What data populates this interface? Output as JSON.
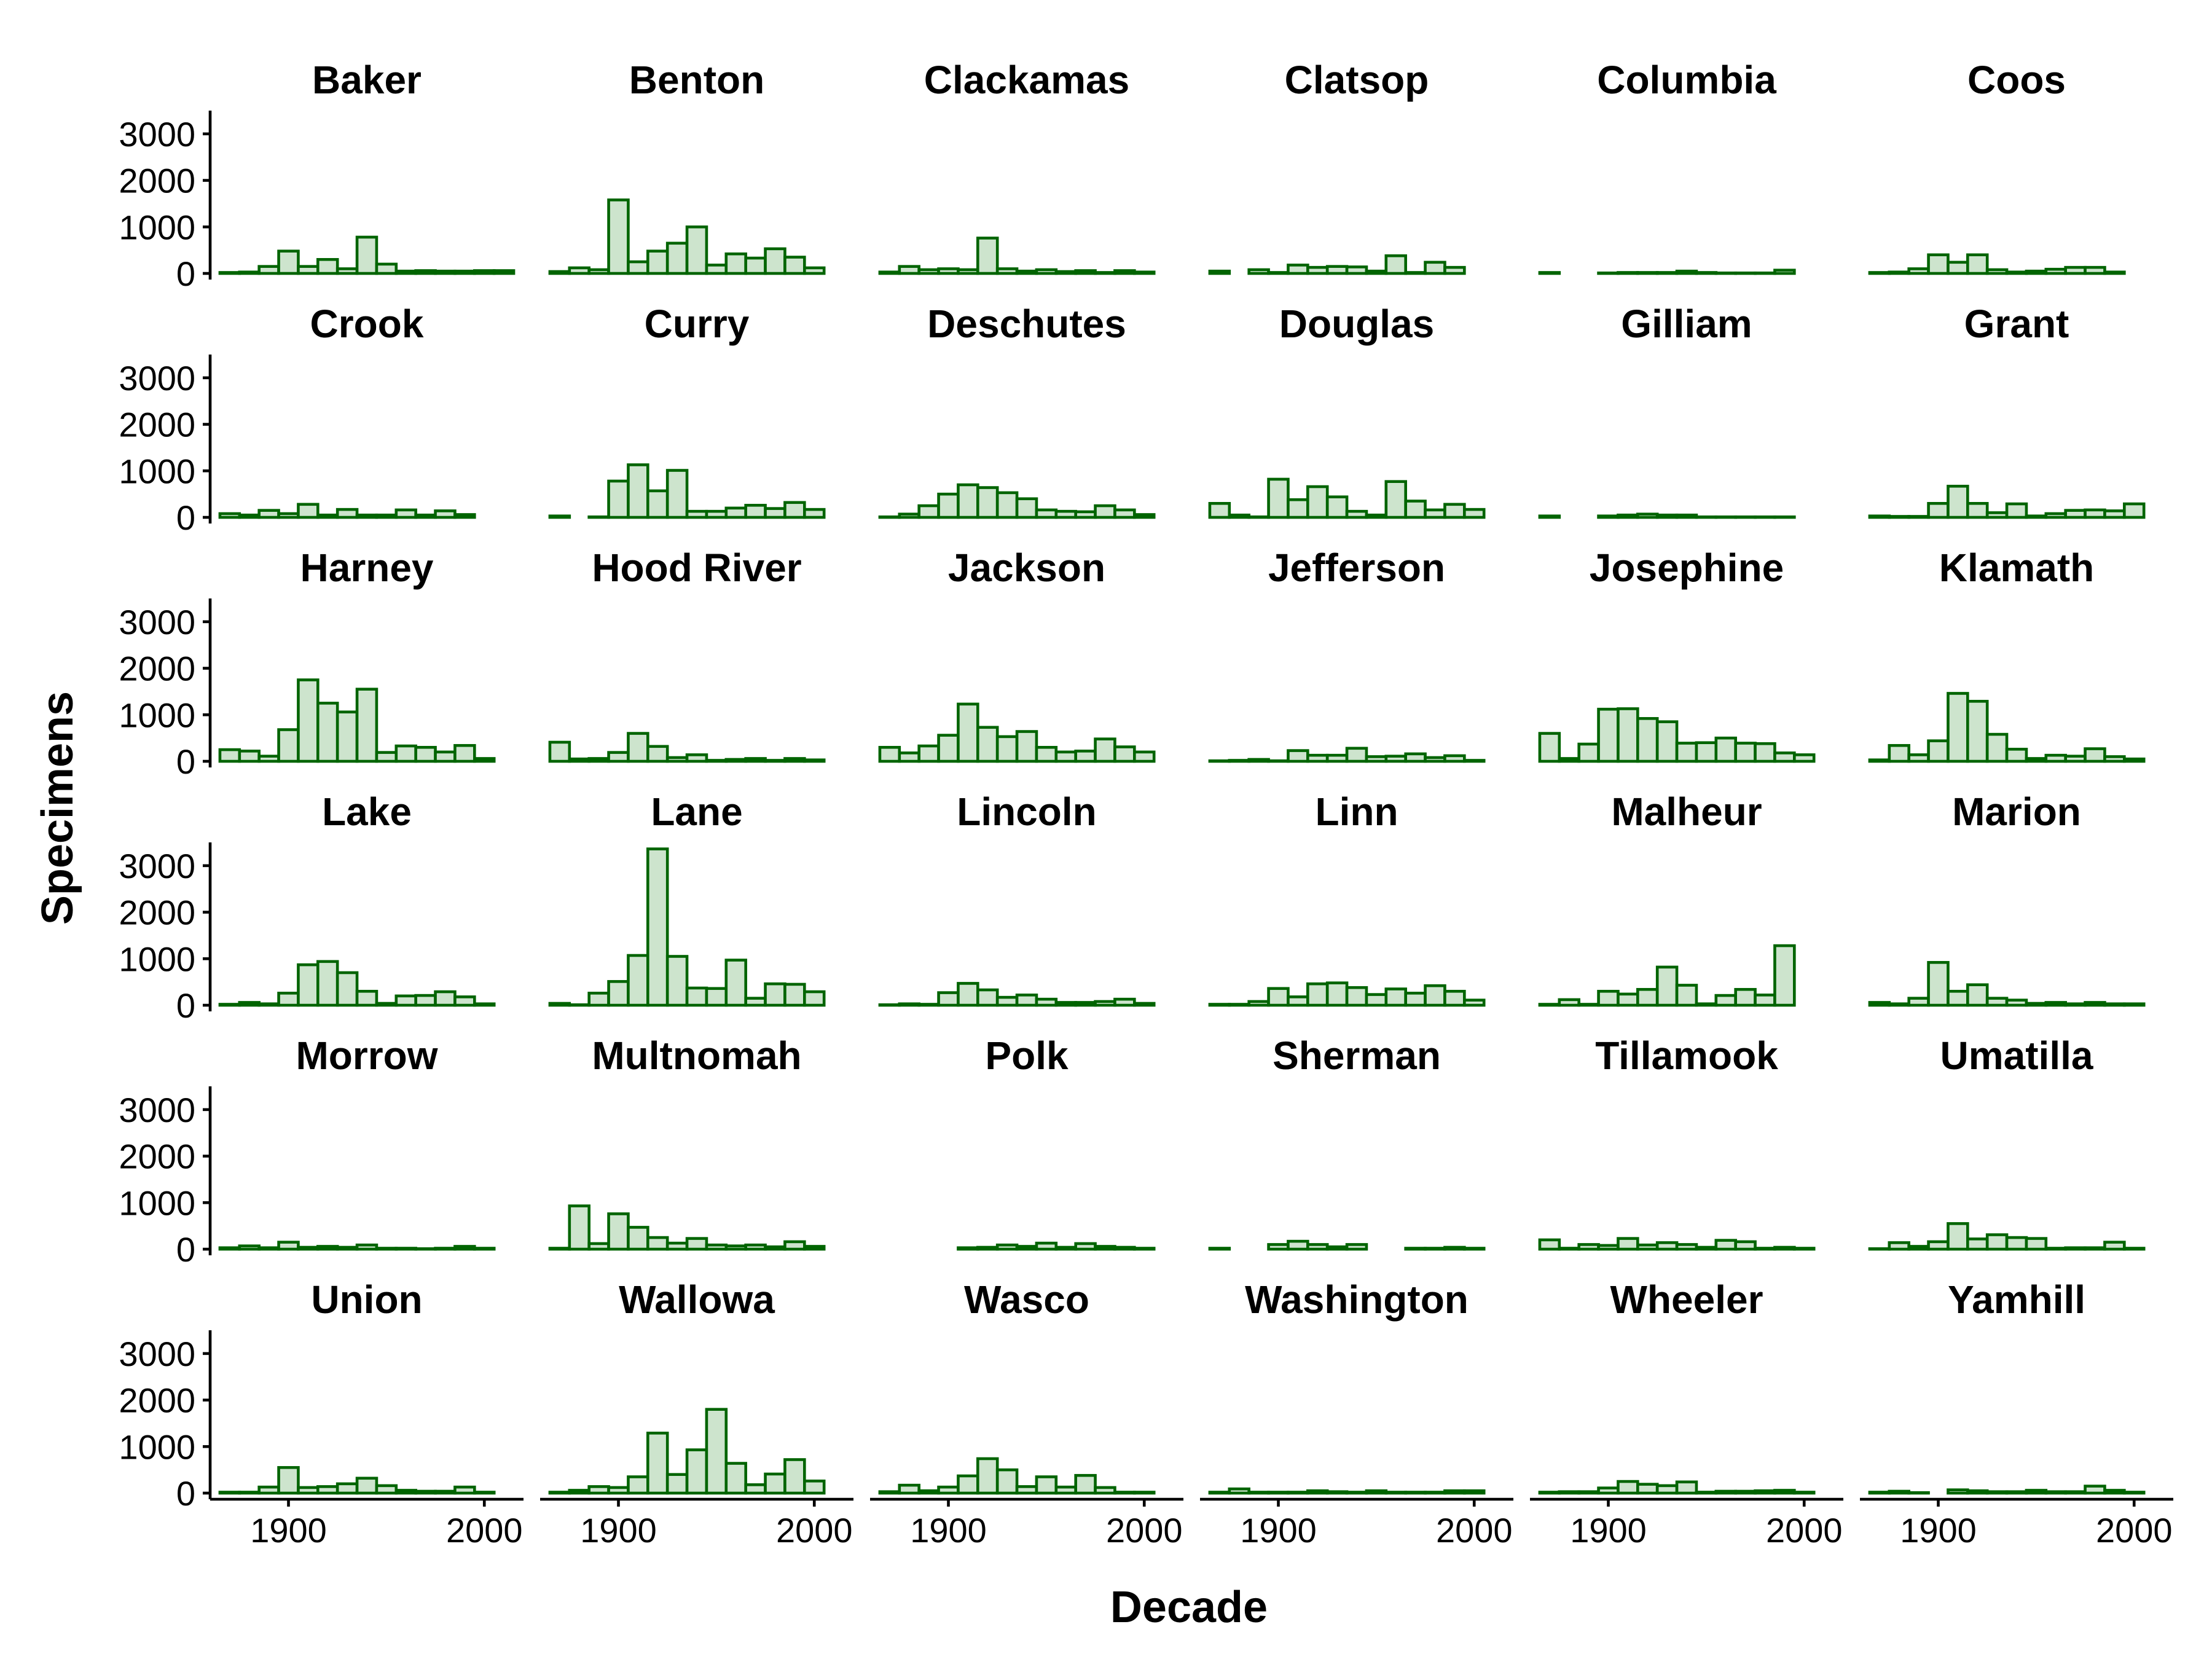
{
  "chart_data": {
    "type": "bar",
    "facet_layout": "6 columns x 6 rows, shared axes",
    "xlabel": "Decade",
    "ylabel": "Specimens",
    "x_ticks": [
      1900,
      2000
    ],
    "y_ticks": [
      0,
      1000,
      2000,
      3000
    ],
    "xlim": [
      1860,
      2020
    ],
    "ylim": [
      0,
      3500
    ],
    "bin_width": 10,
    "decades": [
      1870,
      1880,
      1890,
      1900,
      1910,
      1920,
      1930,
      1940,
      1950,
      1960,
      1970,
      1980,
      1990,
      2000,
      2010
    ],
    "bar_fill": "#cde4cd",
    "bar_stroke": "#006400",
    "grid": false,
    "legend": "none",
    "panels": [
      {
        "name": "Baker",
        "values": [
          20,
          30,
          150,
          480,
          150,
          300,
          100,
          780,
          200,
          50,
          60,
          50,
          50,
          60,
          60
        ]
      },
      {
        "name": "Benton",
        "values": [
          40,
          120,
          80,
          1580,
          250,
          480,
          650,
          1000,
          180,
          420,
          330,
          530,
          350,
          120,
          0
        ]
      },
      {
        "name": "Clackamas",
        "values": [
          30,
          150,
          80,
          100,
          80,
          760,
          100,
          50,
          80,
          40,
          60,
          20,
          60,
          30,
          0
        ]
      },
      {
        "name": "Clatsop",
        "values": [
          50,
          0,
          80,
          20,
          180,
          130,
          150,
          140,
          50,
          380,
          20,
          240,
          130,
          0,
          0
        ]
      },
      {
        "name": "Columbia",
        "values": [
          20,
          0,
          0,
          10,
          20,
          20,
          20,
          50,
          20,
          10,
          10,
          10,
          70,
          0,
          0
        ]
      },
      {
        "name": "Coos",
        "values": [
          20,
          30,
          100,
          400,
          240,
          400,
          80,
          30,
          50,
          90,
          130,
          130,
          30,
          0,
          0
        ]
      },
      {
        "name": "Crook",
        "values": [
          80,
          50,
          150,
          80,
          280,
          50,
          170,
          50,
          50,
          160,
          50,
          140,
          60,
          0,
          0
        ]
      },
      {
        "name": "Curry",
        "values": [
          30,
          0,
          10,
          780,
          1130,
          570,
          1010,
          130,
          130,
          200,
          260,
          190,
          320,
          170,
          0
        ]
      },
      {
        "name": "Deschutes",
        "values": [
          10,
          70,
          250,
          500,
          700,
          640,
          530,
          400,
          160,
          130,
          120,
          250,
          160,
          60,
          0
        ]
      },
      {
        "name": "Douglas",
        "values": [
          300,
          50,
          10,
          820,
          380,
          660,
          440,
          130,
          50,
          770,
          350,
          160,
          280,
          170,
          0
        ]
      },
      {
        "name": "Gilliam",
        "values": [
          30,
          0,
          0,
          30,
          50,
          70,
          50,
          50,
          10,
          10,
          10,
          10,
          10,
          0,
          0
        ]
      },
      {
        "name": "Grant",
        "values": [
          30,
          20,
          20,
          300,
          670,
          300,
          100,
          290,
          30,
          80,
          150,
          160,
          140,
          290,
          0
        ]
      },
      {
        "name": "Harney",
        "values": [
          250,
          220,
          110,
          680,
          1750,
          1250,
          1060,
          1550,
          190,
          330,
          300,
          200,
          340,
          60,
          0
        ]
      },
      {
        "name": "Hood River",
        "values": [
          410,
          50,
          60,
          190,
          600,
          320,
          80,
          140,
          20,
          40,
          60,
          20,
          60,
          30,
          0
        ]
      },
      {
        "name": "Jackson",
        "values": [
          300,
          180,
          330,
          560,
          1230,
          730,
          530,
          640,
          300,
          200,
          220,
          480,
          310,
          200,
          0
        ]
      },
      {
        "name": "Jefferson",
        "values": [
          10,
          20,
          40,
          10,
          230,
          130,
          130,
          280,
          100,
          110,
          160,
          80,
          120,
          20,
          0
        ]
      },
      {
        "name": "Josephine",
        "values": [
          600,
          60,
          370,
          1120,
          1130,
          920,
          850,
          390,
          400,
          500,
          390,
          380,
          180,
          140,
          0
        ]
      },
      {
        "name": "Klamath",
        "values": [
          30,
          340,
          140,
          440,
          1460,
          1290,
          580,
          260,
          60,
          130,
          110,
          270,
          100,
          50,
          0
        ]
      },
      {
        "name": "Lake",
        "values": [
          20,
          60,
          30,
          260,
          870,
          940,
          700,
          300,
          40,
          200,
          210,
          290,
          180,
          30,
          0
        ]
      },
      {
        "name": "Lane",
        "values": [
          40,
          10,
          260,
          510,
          1070,
          3360,
          1050,
          370,
          360,
          970,
          150,
          460,
          450,
          290,
          0
        ]
      },
      {
        "name": "Lincoln",
        "values": [
          10,
          30,
          20,
          270,
          470,
          330,
          170,
          220,
          130,
          60,
          60,
          80,
          130,
          40,
          0
        ]
      },
      {
        "name": "Linn",
        "values": [
          20,
          20,
          80,
          360,
          180,
          460,
          480,
          380,
          230,
          350,
          260,
          420,
          300,
          110,
          0
        ]
      },
      {
        "name": "Malheur",
        "values": [
          20,
          120,
          20,
          300,
          240,
          340,
          820,
          430,
          30,
          210,
          340,
          220,
          1280,
          0,
          0
        ]
      },
      {
        "name": "Marion",
        "values": [
          60,
          30,
          150,
          920,
          300,
          440,
          150,
          110,
          40,
          60,
          30,
          60,
          30,
          30,
          0
        ]
      },
      {
        "name": "Morrow",
        "values": [
          30,
          70,
          30,
          150,
          40,
          60,
          40,
          90,
          20,
          20,
          10,
          20,
          60,
          20,
          0
        ]
      },
      {
        "name": "Multnomah",
        "values": [
          20,
          930,
          120,
          760,
          470,
          250,
          130,
          230,
          90,
          70,
          90,
          50,
          160,
          60,
          0
        ]
      },
      {
        "name": "Polk",
        "values": [
          0,
          0,
          0,
          0,
          30,
          40,
          90,
          60,
          130,
          40,
          120,
          60,
          40,
          20,
          0
        ]
      },
      {
        "name": "Sherman",
        "values": [
          20,
          0,
          0,
          100,
          170,
          100,
          50,
          100,
          0,
          0,
          20,
          20,
          40,
          20,
          0
        ]
      },
      {
        "name": "Tillamook",
        "values": [
          200,
          20,
          100,
          80,
          230,
          90,
          140,
          100,
          40,
          190,
          160,
          20,
          40,
          20,
          0
        ]
      },
      {
        "name": "Umatilla",
        "values": [
          10,
          140,
          60,
          160,
          550,
          220,
          310,
          250,
          230,
          20,
          30,
          30,
          150,
          20,
          0
        ]
      },
      {
        "name": "Union",
        "values": [
          20,
          20,
          130,
          550,
          120,
          140,
          200,
          320,
          160,
          60,
          40,
          40,
          130,
          20,
          0
        ]
      },
      {
        "name": "Wallowa",
        "values": [
          20,
          60,
          140,
          120,
          350,
          1290,
          400,
          930,
          1800,
          640,
          180,
          410,
          720,
          260,
          0
        ]
      },
      {
        "name": "Wasco",
        "values": [
          30,
          170,
          50,
          130,
          370,
          740,
          500,
          140,
          350,
          130,
          380,
          120,
          20,
          20,
          0
        ]
      },
      {
        "name": "Washington",
        "values": [
          20,
          90,
          20,
          20,
          20,
          50,
          30,
          20,
          50,
          20,
          20,
          20,
          50,
          50,
          0
        ]
      },
      {
        "name": "Wheeler",
        "values": [
          20,
          30,
          30,
          110,
          250,
          190,
          160,
          240,
          20,
          40,
          40,
          50,
          60,
          20,
          0
        ]
      },
      {
        "name": "Yamhill",
        "values": [
          20,
          40,
          10,
          0,
          70,
          50,
          30,
          30,
          60,
          30,
          30,
          150,
          60,
          20,
          0
        ]
      }
    ]
  }
}
